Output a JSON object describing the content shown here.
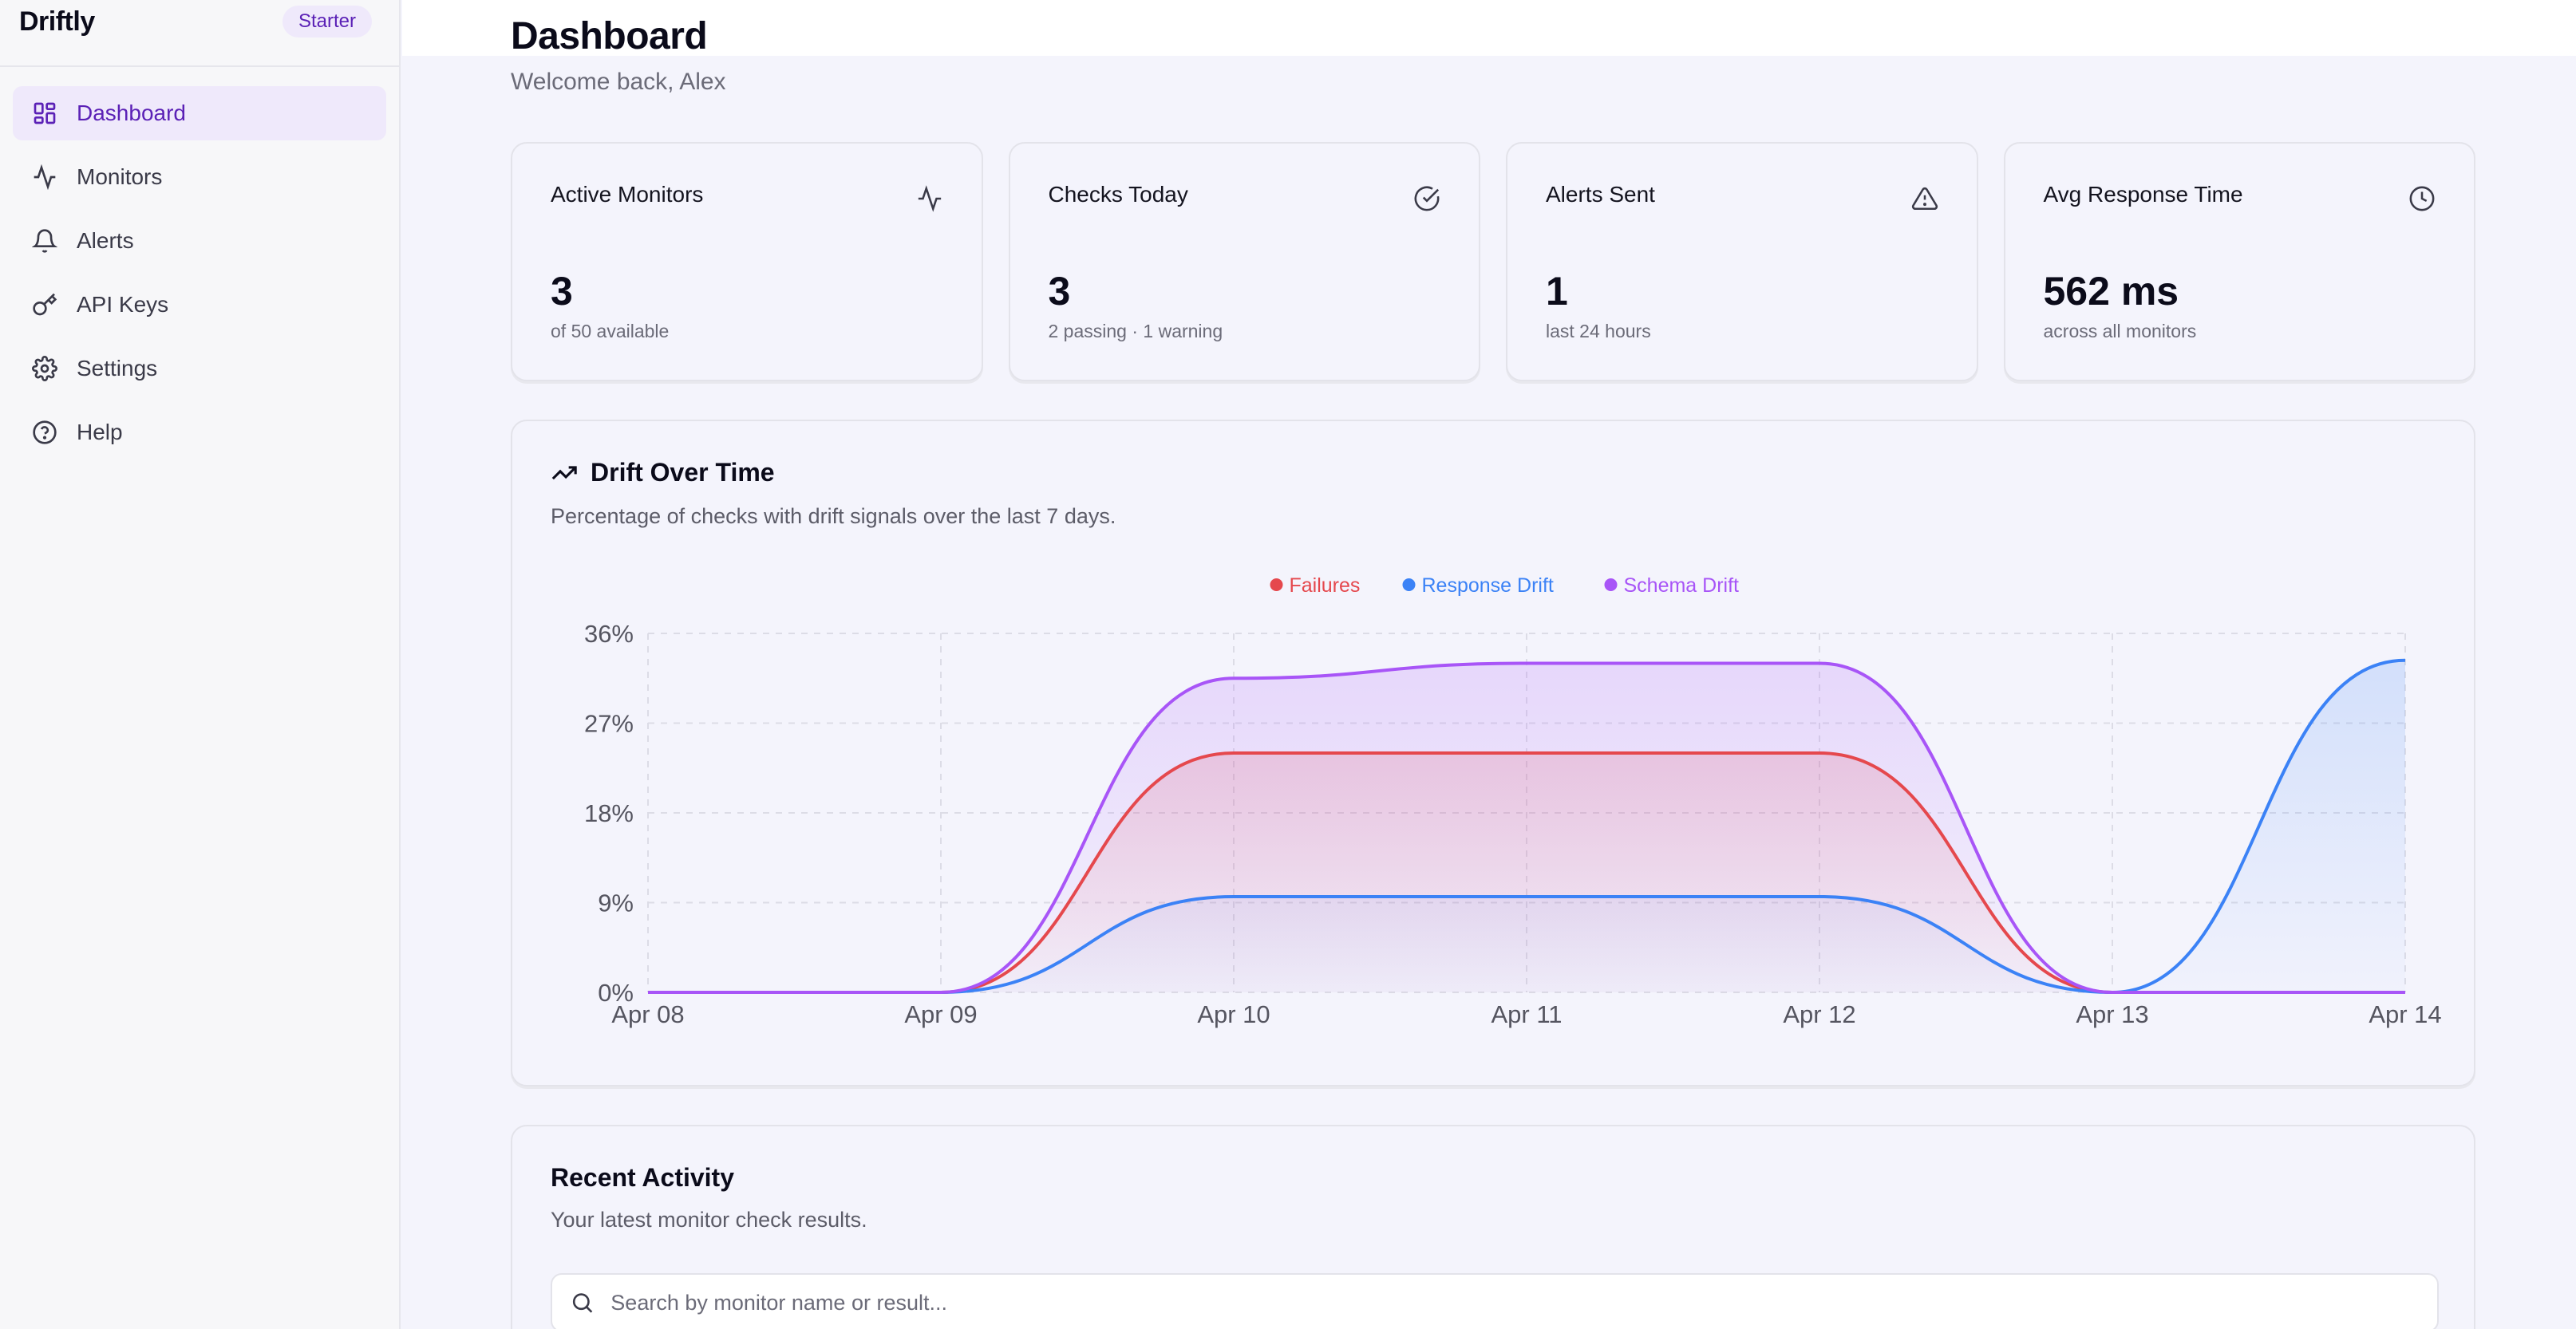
{
  "brand": {
    "name": "Driftly",
    "plan": "Starter"
  },
  "nav": [
    {
      "label": "Dashboard",
      "icon": "dashboard-icon",
      "active": true
    },
    {
      "label": "Monitors",
      "icon": "activity-icon",
      "active": false
    },
    {
      "label": "Alerts",
      "icon": "bell-icon",
      "active": false
    },
    {
      "label": "API Keys",
      "icon": "key-icon",
      "active": false
    },
    {
      "label": "Settings",
      "icon": "gear-icon",
      "active": false
    },
    {
      "label": "Help",
      "icon": "help-icon",
      "active": false
    }
  ],
  "header": {
    "title": "Dashboard",
    "subtitle": "Welcome back, Alex"
  },
  "stats": [
    {
      "label": "Active Monitors",
      "value": "3",
      "sub": "of 50 available",
      "icon": "activity-icon"
    },
    {
      "label": "Checks Today",
      "value": "3",
      "sub": "2 passing · 1 warning",
      "icon": "check-circle-icon"
    },
    {
      "label": "Alerts Sent",
      "value": "1",
      "sub": "last 24 hours",
      "icon": "warning-icon"
    },
    {
      "label": "Avg Response Time",
      "value": "562 ms",
      "sub": "across all monitors",
      "icon": "clock-icon"
    }
  ],
  "chart": {
    "title": "Drift Over Time",
    "subtitle": "Percentage of checks with drift signals over the last 7 days."
  },
  "chart_data": {
    "type": "area",
    "categories": [
      "Apr 08",
      "Apr 09",
      "Apr 10",
      "Apr 11",
      "Apr 12",
      "Apr 13",
      "Apr 14"
    ],
    "y_ticks": [
      "0%",
      "9%",
      "18%",
      "27%",
      "36%"
    ],
    "ylim": [
      0,
      36
    ],
    "grid": true,
    "legend_position": "top-center",
    "series": [
      {
        "name": "Failures",
        "color": "#e5484d",
        "values": [
          0,
          0,
          24,
          24,
          24,
          0,
          0
        ]
      },
      {
        "name": "Response Drift",
        "color": "#3b82f6",
        "values": [
          0,
          0,
          9.6,
          9.6,
          9.6,
          0,
          33.3
        ]
      },
      {
        "name": "Schema Drift",
        "color": "#a855f7",
        "values": [
          0,
          0,
          31.5,
          33,
          33,
          0,
          0
        ]
      }
    ]
  },
  "activity": {
    "title": "Recent Activity",
    "subtitle": "Your latest monitor check results.",
    "search_placeholder": "Search by monitor name or result..."
  }
}
